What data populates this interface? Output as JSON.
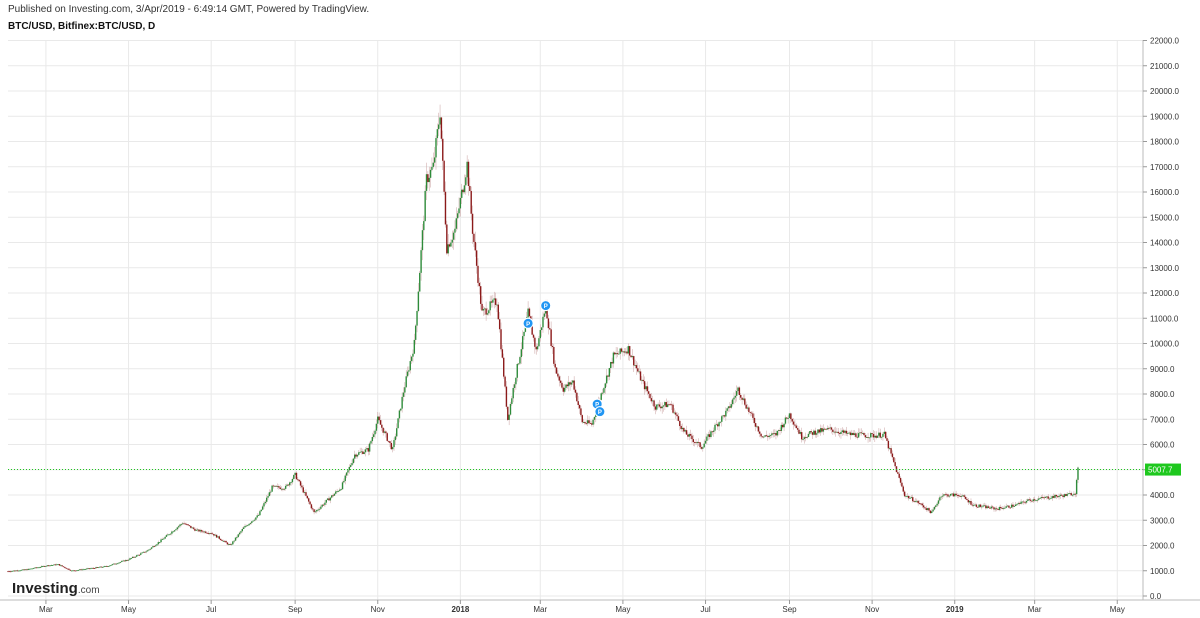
{
  "header": {
    "published": "Published on Investing.com, 3/Apr/2019 - 6:49:14 GMT, Powered by TradingView.",
    "symbol": "BTC/USD, Bitfinex:BTC/USD, D"
  },
  "logo": {
    "brand": "Investing",
    "suffix": ".com"
  },
  "colors": {
    "up": "#2e8b3a",
    "down": "#8b1a1a",
    "grid": "#e9e9e9",
    "price_line": "#1ec81e",
    "price_label_bg": "#1ec81e",
    "marker": "#2196f3"
  },
  "chart_data": {
    "type": "candlestick",
    "title": "BTC/USD, Bitfinex:BTC/USD, D",
    "x_ticks": [
      "Mar",
      "May",
      "Jul",
      "Sep",
      "Nov",
      "2018",
      "Mar",
      "May",
      "Jul",
      "Sep",
      "Nov",
      "2019",
      "Mar",
      "May"
    ],
    "y_ticks": [
      "22000.0",
      "21000.0",
      "20000.0",
      "19000.0",
      "18000.0",
      "17000.0",
      "16000.0",
      "15000.0",
      "14000.0",
      "13000.0",
      "12000.0",
      "11000.0",
      "10000.0",
      "9000.0",
      "8000.0",
      "7000.0",
      "6000.0",
      "5000.0",
      "4000.0",
      "3000.0",
      "2000.0",
      "1000.0",
      "0.0"
    ],
    "ylim": [
      0,
      22000
    ],
    "xlim": [
      "2017-02-01",
      "2019-05-20"
    ],
    "last_price": "5007.7",
    "last_price_value": 5007.7,
    "markers": [
      {
        "date": "2018-02-20",
        "value": 10800,
        "label": "P"
      },
      {
        "date": "2018-03-05",
        "value": 11500,
        "label": "P"
      },
      {
        "date": "2018-04-12",
        "value": 7600,
        "label": "P"
      },
      {
        "date": "2018-04-14",
        "value": 7300,
        "label": "P"
      }
    ],
    "series": [
      {
        "date": "2017-02-01",
        "close": 980
      },
      {
        "date": "2017-02-15",
        "close": 1050
      },
      {
        "date": "2017-03-01",
        "close": 1200
      },
      {
        "date": "2017-03-10",
        "close": 1250
      },
      {
        "date": "2017-03-20",
        "close": 1000
      },
      {
        "date": "2017-04-01",
        "close": 1080
      },
      {
        "date": "2017-04-15",
        "close": 1180
      },
      {
        "date": "2017-05-01",
        "close": 1450
      },
      {
        "date": "2017-05-15",
        "close": 1800
      },
      {
        "date": "2017-05-25",
        "close": 2200
      },
      {
        "date": "2017-06-10",
        "close": 2900
      },
      {
        "date": "2017-06-20",
        "close": 2600
      },
      {
        "date": "2017-07-01",
        "close": 2500
      },
      {
        "date": "2017-07-15",
        "close": 2000
      },
      {
        "date": "2017-07-25",
        "close": 2700
      },
      {
        "date": "2017-08-05",
        "close": 3200
      },
      {
        "date": "2017-08-15",
        "close": 4300
      },
      {
        "date": "2017-08-25",
        "close": 4300
      },
      {
        "date": "2017-09-01",
        "close": 4800
      },
      {
        "date": "2017-09-15",
        "close": 3300
      },
      {
        "date": "2017-09-25",
        "close": 3800
      },
      {
        "date": "2017-10-05",
        "close": 4300
      },
      {
        "date": "2017-10-15",
        "close": 5600
      },
      {
        "date": "2017-10-25",
        "close": 5800
      },
      {
        "date": "2017-11-01",
        "close": 7000
      },
      {
        "date": "2017-11-12",
        "close": 5800
      },
      {
        "date": "2017-11-20",
        "close": 8100
      },
      {
        "date": "2017-11-28",
        "close": 10000
      },
      {
        "date": "2017-12-07",
        "close": 16500
      },
      {
        "date": "2017-12-12",
        "close": 17000
      },
      {
        "date": "2017-12-17",
        "close": 19200
      },
      {
        "date": "2017-12-22",
        "close": 13800
      },
      {
        "date": "2017-12-28",
        "close": 14500
      },
      {
        "date": "2018-01-06",
        "close": 17100
      },
      {
        "date": "2018-01-10",
        "close": 14500
      },
      {
        "date": "2018-01-17",
        "close": 11200
      },
      {
        "date": "2018-01-28",
        "close": 11700
      },
      {
        "date": "2018-02-05",
        "close": 7000
      },
      {
        "date": "2018-02-10",
        "close": 8500
      },
      {
        "date": "2018-02-20",
        "close": 11200
      },
      {
        "date": "2018-02-26",
        "close": 9700
      },
      {
        "date": "2018-03-05",
        "close": 11500
      },
      {
        "date": "2018-03-12",
        "close": 9000
      },
      {
        "date": "2018-03-18",
        "close": 8200
      },
      {
        "date": "2018-03-25",
        "close": 8500
      },
      {
        "date": "2018-04-01",
        "close": 6900
      },
      {
        "date": "2018-04-08",
        "close": 6800
      },
      {
        "date": "2018-04-15",
        "close": 8000
      },
      {
        "date": "2018-04-24",
        "close": 9500
      },
      {
        "date": "2018-05-05",
        "close": 9800
      },
      {
        "date": "2018-05-15",
        "close": 8500
      },
      {
        "date": "2018-05-25",
        "close": 7500
      },
      {
        "date": "2018-06-05",
        "close": 7600
      },
      {
        "date": "2018-06-15",
        "close": 6500
      },
      {
        "date": "2018-06-28",
        "close": 5900
      },
      {
        "date": "2018-07-08",
        "close": 6700
      },
      {
        "date": "2018-07-18",
        "close": 7400
      },
      {
        "date": "2018-07-25",
        "close": 8200
      },
      {
        "date": "2018-08-05",
        "close": 7000
      },
      {
        "date": "2018-08-12",
        "close": 6300
      },
      {
        "date": "2018-08-22",
        "close": 6400
      },
      {
        "date": "2018-09-01",
        "close": 7200
      },
      {
        "date": "2018-09-10",
        "close": 6300
      },
      {
        "date": "2018-09-20",
        "close": 6500
      },
      {
        "date": "2018-10-01",
        "close": 6600
      },
      {
        "date": "2018-10-15",
        "close": 6400
      },
      {
        "date": "2018-11-01",
        "close": 6350
      },
      {
        "date": "2018-11-10",
        "close": 6400
      },
      {
        "date": "2018-11-15",
        "close": 5600
      },
      {
        "date": "2018-11-25",
        "close": 4000
      },
      {
        "date": "2018-12-05",
        "close": 3700
      },
      {
        "date": "2018-12-15",
        "close": 3300
      },
      {
        "date": "2018-12-22",
        "close": 4000
      },
      {
        "date": "2019-01-05",
        "close": 4000
      },
      {
        "date": "2019-01-15",
        "close": 3600
      },
      {
        "date": "2019-02-01",
        "close": 3450
      },
      {
        "date": "2019-02-15",
        "close": 3600
      },
      {
        "date": "2019-02-25",
        "close": 3800
      },
      {
        "date": "2019-03-10",
        "close": 3900
      },
      {
        "date": "2019-03-25",
        "close": 4000
      },
      {
        "date": "2019-03-31",
        "close": 4100
      },
      {
        "date": "2019-04-02",
        "close": 5007.7
      }
    ]
  }
}
